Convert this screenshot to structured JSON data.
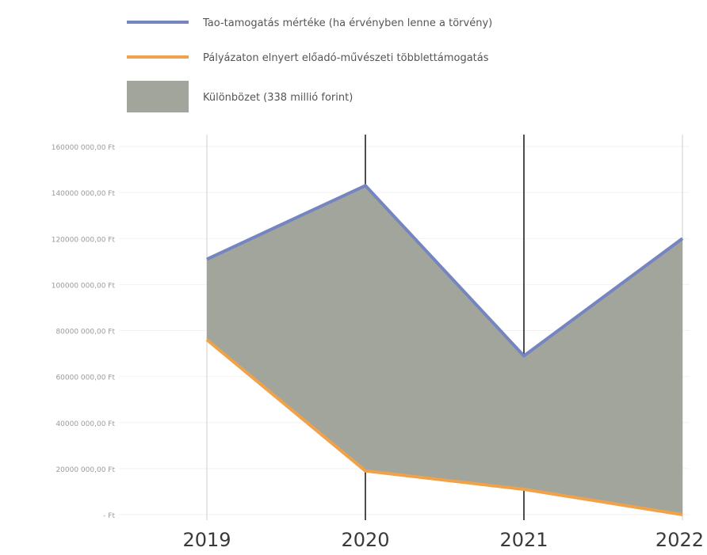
{
  "chart_data": {
    "type": "area",
    "categories": [
      "2019",
      "2020",
      "2021",
      "2022"
    ],
    "series": [
      {
        "name": "Tao-tamogatás mértéke (ha érvényben lenne a törvény)",
        "values": [
          111000000,
          143000000,
          69000000,
          120000000
        ],
        "color": "#7485c0"
      },
      {
        "name": "Pályázaton elnyert előadó-művészeti többlettámogatás",
        "values": [
          76000000,
          19000000,
          11000000,
          0
        ],
        "color": "#f0a24a"
      }
    ],
    "difference": {
      "name": "Különbözet (338 millió forint)",
      "color": "#a2a59c"
    },
    "ylim": [
      0,
      160000000
    ],
    "yticks": [
      {
        "value": 160000000,
        "label": "160000 000,00 Ft"
      },
      {
        "value": 140000000,
        "label": "140000 000,00 Ft"
      },
      {
        "value": 120000000,
        "label": "120000 000,00 Ft"
      },
      {
        "value": 100000000,
        "label": "100000 000,00 Ft"
      },
      {
        "value": 80000000,
        "label": "80000 000,00 Ft"
      },
      {
        "value": 60000000,
        "label": "60000 000,00 Ft"
      },
      {
        "value": 40000000,
        "label": "40000 000,00 Ft"
      },
      {
        "value": 20000000,
        "label": "20000 000,00 Ft"
      },
      {
        "value": 0,
        "label": "- Ft"
      }
    ],
    "legend_position": "top",
    "grid": true
  }
}
